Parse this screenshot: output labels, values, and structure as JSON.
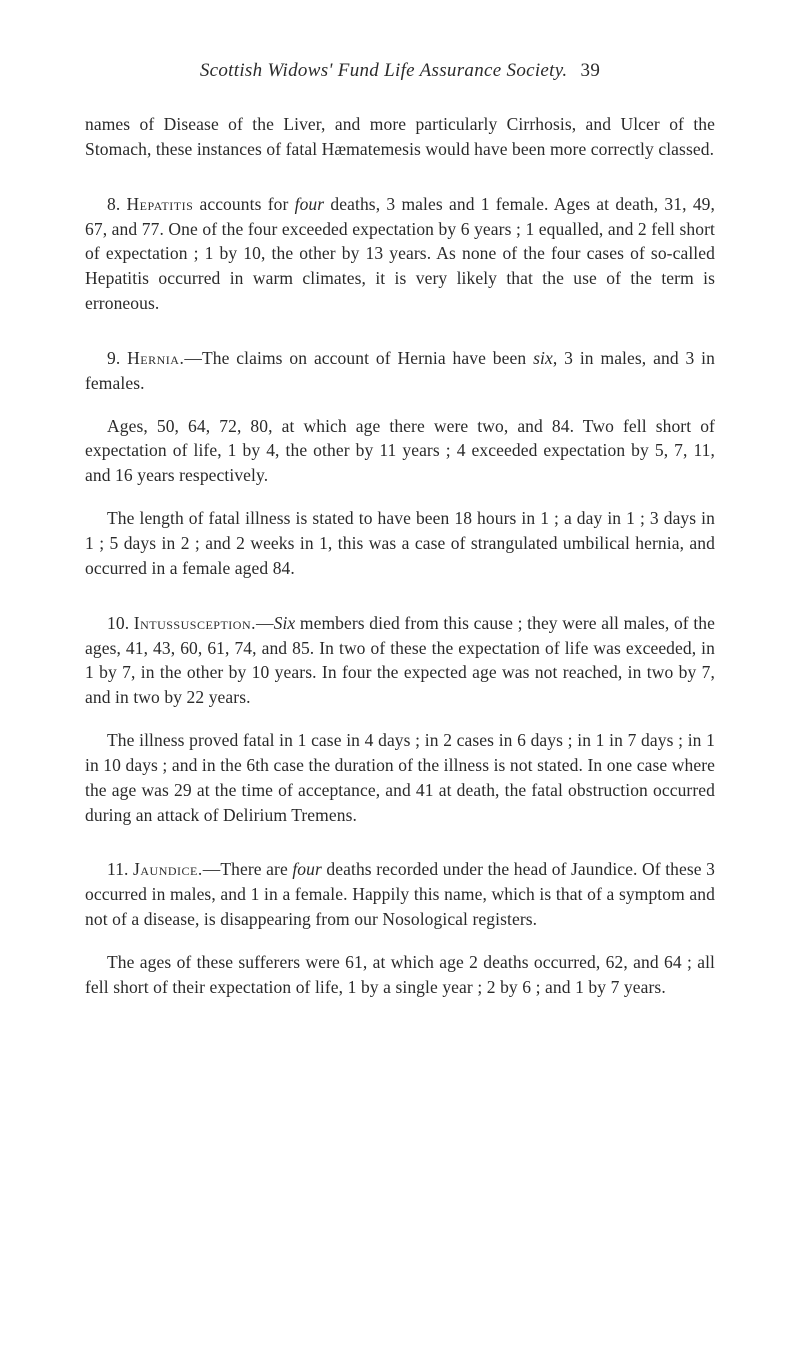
{
  "head": {
    "title": "Scottish Widows' Fund Life Assurance Society.",
    "pagenum": "39"
  },
  "para1": "names of Disease of the Liver, and more particularly Cirrhosis, and Ulcer of the Stomach, these instances of fatal Hæmatemesis would have been more correctly classed.",
  "section8": {
    "lead": "8. ",
    "caps": "Hepatitis",
    "p1a": " accounts for ",
    "p1_it1": "four",
    "p1b": " deaths, 3 males and 1 female. Ages at death, 31, 49, 67, and 77. One of the four exceeded expectation by 6 years ; 1 equalled, and 2 fell short of expectation ; 1 by 10, the other by 13 years. As none of the four cases of so-called Hepatitis occurred in warm climates, it is very likely that the use of the term is erroneous."
  },
  "section9": {
    "lead": "9. ",
    "caps": "Hernia.",
    "p1a": "—The claims on account of Hernia have been ",
    "p1_it1": "six",
    "p1b": ", 3 in males, and 3 in females.",
    "p2": "Ages, 50, 64, 72, 80, at which age there were two, and 84. Two fell short of expectation of life, 1 by 4, the other by 11 years ; 4 exceeded expectation by 5, 7, 11, and 16 years respectively.",
    "p3": "The length of fatal illness is stated to have been 18 hours in 1 ; a day in 1 ; 3 days in 1 ; 5 days in 2 ; and 2 weeks in 1, this was a case of strangulated umbilical hernia, and occurred in a female aged 84."
  },
  "section10": {
    "lead": "10. ",
    "caps": "Intussusception.",
    "p1a": "—",
    "p1_it1": "Six",
    "p1b": " members died from this cause ; they were all males, of the ages, 41, 43, 60, 61, 74, and 85. In two of these the expectation of life was exceeded, in 1 by 7, in the other by 10 years. In four the expected age was not reached, in two by 7, and in two by 22 years.",
    "p2": "The illness proved fatal in 1 case in 4 days ; in 2 cases in 6 days ; in 1 in 7 days ; in 1 in 10 days ; and in the 6th case the duration of the illness is not stated. In one case where the age was 29 at the time of acceptance, and 41 at death, the fatal obstruction occurred during an attack of Delirium Tremens."
  },
  "section11": {
    "lead": "11. ",
    "caps": "Jaundice.",
    "p1a": "—There are ",
    "p1_it1": "four",
    "p1b": " deaths recorded under the head of Jaundice. Of these 3 occurred in males, and 1 in a female. Happily this name, which is that of a symptom and not of a disease, is disappearing from our Nosological registers.",
    "p2": "The ages of these sufferers were 61, at which age 2 deaths occurred, 62, and 64 ; all fell short of their expectation of life, 1 by a single year ; 2 by 6 ; and 1 by 7 years."
  }
}
